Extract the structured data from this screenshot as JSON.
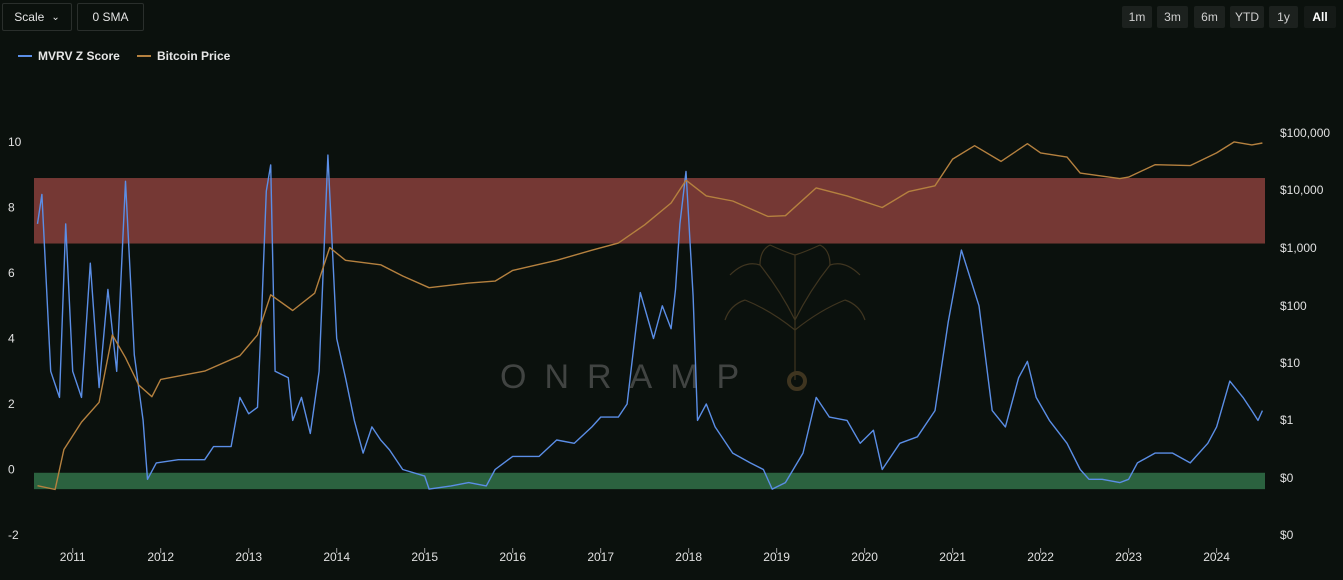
{
  "toolbar": {
    "scale_label": "Scale",
    "sma_label": "0 SMA",
    "ranges": [
      "1m",
      "3m",
      "6m",
      "YTD",
      "1y",
      "All"
    ],
    "active_range": "All"
  },
  "watermark": "ONRAMP",
  "colors": {
    "background": "#0b110d",
    "mvrv": "#5b8ee6",
    "price": "#b5813f",
    "red_zone": "#7b3b37",
    "green_zone": "#2f6b45"
  },
  "chart_data": {
    "type": "line",
    "title": "",
    "left_axis": {
      "ticks": [
        10,
        8,
        6,
        4,
        2,
        0,
        -2
      ],
      "range": [
        -2,
        10
      ]
    },
    "right_axis": {
      "scale": "log",
      "ticks": [
        "$100,000",
        "$10,000",
        "$1,000",
        "$100",
        "$10",
        "$1",
        "$0",
        "$0"
      ]
    },
    "x_ticks": [
      "2011",
      "2012",
      "2013",
      "2014",
      "2015",
      "2016",
      "2017",
      "2018",
      "2019",
      "2020",
      "2021",
      "2022",
      "2023",
      "2024"
    ],
    "zones": [
      {
        "name": "",
        "axis": "left",
        "from": 6.9,
        "to": 8.9,
        "color": "#7b3b37"
      },
      {
        "name": "",
        "axis": "left",
        "from": -0.6,
        "to": -0.1,
        "color": "#2f6b45"
      }
    ],
    "legend_position": "top-left",
    "series": [
      {
        "name": "MVRV Z Score",
        "axis": "left",
        "color": "#5b8ee6",
        "points": [
          [
            2010.6,
            7.5
          ],
          [
            2010.65,
            8.4
          ],
          [
            2010.75,
            3.0
          ],
          [
            2010.85,
            2.2
          ],
          [
            2010.92,
            7.5
          ],
          [
            2011.0,
            3.0
          ],
          [
            2011.1,
            2.2
          ],
          [
            2011.2,
            6.3
          ],
          [
            2011.3,
            2.5
          ],
          [
            2011.4,
            5.5
          ],
          [
            2011.5,
            3.0
          ],
          [
            2011.6,
            8.8
          ],
          [
            2011.7,
            3.5
          ],
          [
            2011.8,
            1.5
          ],
          [
            2011.85,
            -0.3
          ],
          [
            2011.95,
            0.2
          ],
          [
            2012.2,
            0.3
          ],
          [
            2012.5,
            0.3
          ],
          [
            2012.6,
            0.7
          ],
          [
            2012.8,
            0.7
          ],
          [
            2012.9,
            2.2
          ],
          [
            2013.0,
            1.7
          ],
          [
            2013.1,
            1.9
          ],
          [
            2013.15,
            5.0
          ],
          [
            2013.2,
            8.5
          ],
          [
            2013.25,
            9.3
          ],
          [
            2013.3,
            3.0
          ],
          [
            2013.45,
            2.8
          ],
          [
            2013.5,
            1.5
          ],
          [
            2013.6,
            2.2
          ],
          [
            2013.7,
            1.1
          ],
          [
            2013.8,
            3.0
          ],
          [
            2013.9,
            9.6
          ],
          [
            2014.0,
            4.0
          ],
          [
            2014.1,
            2.8
          ],
          [
            2014.2,
            1.5
          ],
          [
            2014.3,
            0.5
          ],
          [
            2014.4,
            1.3
          ],
          [
            2014.5,
            0.9
          ],
          [
            2014.6,
            0.6
          ],
          [
            2014.75,
            0.0
          ],
          [
            2015.0,
            -0.2
          ],
          [
            2015.05,
            -0.6
          ],
          [
            2015.3,
            -0.5
          ],
          [
            2015.5,
            -0.4
          ],
          [
            2015.7,
            -0.5
          ],
          [
            2015.8,
            0.0
          ],
          [
            2015.9,
            0.2
          ],
          [
            2016.0,
            0.4
          ],
          [
            2016.3,
            0.4
          ],
          [
            2016.5,
            0.9
          ],
          [
            2016.7,
            0.8
          ],
          [
            2016.9,
            1.3
          ],
          [
            2017.0,
            1.6
          ],
          [
            2017.2,
            1.6
          ],
          [
            2017.3,
            2.0
          ],
          [
            2017.4,
            4.3
          ],
          [
            2017.45,
            5.4
          ],
          [
            2017.6,
            4.0
          ],
          [
            2017.7,
            5.0
          ],
          [
            2017.8,
            4.3
          ],
          [
            2017.85,
            5.5
          ],
          [
            2017.9,
            7.5
          ],
          [
            2017.97,
            9.1
          ],
          [
            2018.05,
            5.3
          ],
          [
            2018.1,
            1.5
          ],
          [
            2018.2,
            2.0
          ],
          [
            2018.3,
            1.3
          ],
          [
            2018.5,
            0.5
          ],
          [
            2018.7,
            0.2
          ],
          [
            2018.85,
            0.0
          ],
          [
            2018.95,
            -0.6
          ],
          [
            2019.1,
            -0.4
          ],
          [
            2019.3,
            0.5
          ],
          [
            2019.45,
            2.2
          ],
          [
            2019.6,
            1.6
          ],
          [
            2019.8,
            1.5
          ],
          [
            2019.95,
            0.8
          ],
          [
            2020.1,
            1.2
          ],
          [
            2020.2,
            0.0
          ],
          [
            2020.4,
            0.8
          ],
          [
            2020.6,
            1.0
          ],
          [
            2020.8,
            1.8
          ],
          [
            2020.95,
            4.5
          ],
          [
            2021.1,
            6.7
          ],
          [
            2021.3,
            5.0
          ],
          [
            2021.45,
            1.8
          ],
          [
            2021.6,
            1.3
          ],
          [
            2021.75,
            2.8
          ],
          [
            2021.85,
            3.3
          ],
          [
            2021.95,
            2.2
          ],
          [
            2022.1,
            1.5
          ],
          [
            2022.3,
            0.8
          ],
          [
            2022.45,
            0.0
          ],
          [
            2022.55,
            -0.3
          ],
          [
            2022.7,
            -0.3
          ],
          [
            2022.9,
            -0.4
          ],
          [
            2023.0,
            -0.3
          ],
          [
            2023.1,
            0.2
          ],
          [
            2023.3,
            0.5
          ],
          [
            2023.5,
            0.5
          ],
          [
            2023.7,
            0.2
          ],
          [
            2023.9,
            0.8
          ],
          [
            2024.0,
            1.3
          ],
          [
            2024.15,
            2.7
          ],
          [
            2024.3,
            2.2
          ],
          [
            2024.4,
            1.8
          ],
          [
            2024.47,
            1.5
          ],
          [
            2024.52,
            1.8
          ]
        ]
      },
      {
        "name": "Bitcoin Price",
        "axis": "right",
        "color": "#b5813f",
        "points": [
          [
            2010.6,
            0.07
          ],
          [
            2010.8,
            0.06
          ],
          [
            2010.9,
            0.3
          ],
          [
            2011.1,
            0.9
          ],
          [
            2011.3,
            2
          ],
          [
            2011.45,
            30
          ],
          [
            2011.6,
            12
          ],
          [
            2011.75,
            4
          ],
          [
            2011.9,
            2.5
          ],
          [
            2012.0,
            5
          ],
          [
            2012.5,
            7
          ],
          [
            2012.9,
            13
          ],
          [
            2013.1,
            30
          ],
          [
            2013.25,
            150
          ],
          [
            2013.5,
            80
          ],
          [
            2013.75,
            160
          ],
          [
            2013.92,
            1000
          ],
          [
            2014.1,
            600
          ],
          [
            2014.5,
            500
          ],
          [
            2014.75,
            320
          ],
          [
            2015.05,
            200
          ],
          [
            2015.5,
            240
          ],
          [
            2015.8,
            260
          ],
          [
            2016.0,
            400
          ],
          [
            2016.5,
            600
          ],
          [
            2016.9,
            900
          ],
          [
            2017.2,
            1200
          ],
          [
            2017.5,
            2500
          ],
          [
            2017.8,
            6000
          ],
          [
            2017.97,
            15000
          ],
          [
            2018.2,
            8000
          ],
          [
            2018.5,
            6500
          ],
          [
            2018.9,
            3500
          ],
          [
            2019.1,
            3600
          ],
          [
            2019.45,
            11000
          ],
          [
            2019.8,
            8000
          ],
          [
            2020.2,
            5000
          ],
          [
            2020.5,
            9500
          ],
          [
            2020.8,
            12000
          ],
          [
            2021.0,
            35000
          ],
          [
            2021.25,
            60000
          ],
          [
            2021.55,
            32000
          ],
          [
            2021.85,
            65000
          ],
          [
            2022.0,
            45000
          ],
          [
            2022.3,
            38000
          ],
          [
            2022.45,
            20000
          ],
          [
            2022.9,
            16000
          ],
          [
            2023.0,
            17000
          ],
          [
            2023.3,
            28000
          ],
          [
            2023.7,
            27000
          ],
          [
            2024.0,
            45000
          ],
          [
            2024.2,
            70000
          ],
          [
            2024.4,
            62000
          ],
          [
            2024.52,
            67000
          ]
        ]
      }
    ]
  }
}
